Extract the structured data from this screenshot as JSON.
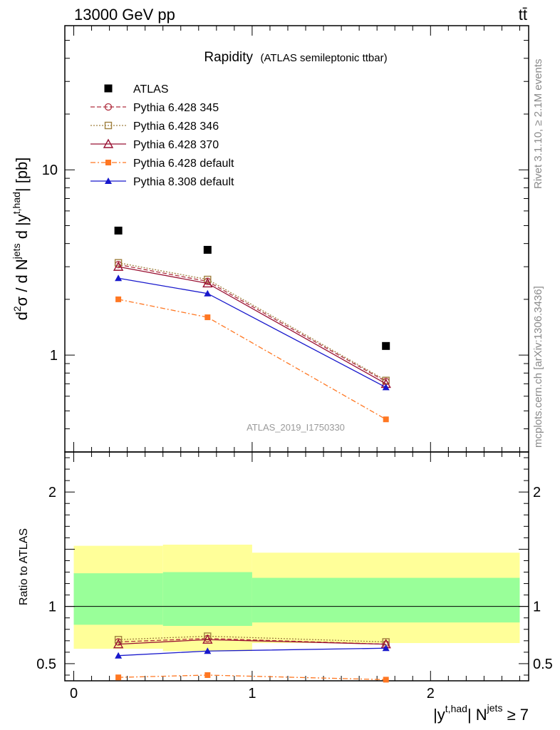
{
  "header": {
    "energy_label": "13000 GeV pp",
    "process_label": "tt̄"
  },
  "side_labels": {
    "rivet": "Rivet 3.1.10, ≥ 2.1M events",
    "mcplots": "mcplots.cern.ch [arXiv:1306.3436]"
  },
  "chart_data": [
    {
      "type": "line",
      "title": "Rapidity",
      "subtitle": "(ATLAS semileptonic ttbar)",
      "watermark": "ATLAS_2019_I1750330",
      "ylabel": {
        "pre": "d",
        "sup1": "2",
        "mid": "σ / d N",
        "sup2": "jets",
        "post": " d |y",
        "sup3": "t,had",
        "end": "| [pb]"
      },
      "yscale": "log",
      "ylim": [
        0.3,
        60
      ],
      "xlim": [
        -0.05,
        2.55
      ],
      "ytick_labels": [
        {
          "v": 1,
          "label": "1"
        },
        {
          "v": 10,
          "label": "10"
        }
      ],
      "x": [
        0.25,
        0.75,
        1.75
      ],
      "series": [
        {
          "name": "ATLAS",
          "values": [
            4.7,
            3.7,
            1.12
          ],
          "color": "#000000",
          "marker": "square",
          "dash": "none"
        },
        {
          "name": "Pythia 6.428 345",
          "values": [
            3.08,
            2.5,
            0.72
          ],
          "color": "#b03040",
          "marker": "circle-open",
          "dash": "6,3"
        },
        {
          "name": "Pythia 6.428 346",
          "values": [
            3.15,
            2.56,
            0.73
          ],
          "color": "#a08040",
          "marker": "square-open",
          "dash": "2,2"
        },
        {
          "name": "Pythia 6.428 370",
          "values": [
            3.0,
            2.44,
            0.7
          ],
          "color": "#991133",
          "marker": "triangle-open",
          "dash": "none"
        },
        {
          "name": "Pythia 6.428 default",
          "values": [
            2.0,
            1.6,
            0.45
          ],
          "color": "#ff7722",
          "marker": "square-filled",
          "dash": "7,3,2,3"
        },
        {
          "name": "Pythia 8.308 default",
          "values": [
            2.6,
            2.15,
            0.67
          ],
          "color": "#1818cc",
          "marker": "triangle-filled",
          "dash": "none"
        }
      ],
      "legend_position": "top-left"
    },
    {
      "type": "line",
      "ylabel": "Ratio to ATLAS",
      "xlabel": {
        "pre": "|y",
        "sup1": "t,had",
        "mid": "| N",
        "sup2": "jets",
        "post": " ≥ 7"
      },
      "ylim": [
        0.35,
        2.35
      ],
      "xlim": [
        -0.05,
        2.55
      ],
      "ytick_labels": [
        {
          "v": 0.5,
          "label": "0.5"
        },
        {
          "v": 1,
          "label": "1"
        },
        {
          "v": 2,
          "label": "2"
        }
      ],
      "xtick_labels": [
        {
          "v": 0,
          "label": "0"
        },
        {
          "v": 1,
          "label": "1"
        },
        {
          "v": 2,
          "label": "2"
        }
      ],
      "bands": [
        {
          "x0": 0.0,
          "x1": 0.5,
          "yellow": [
            0.63,
            1.53
          ],
          "green": [
            0.84,
            1.29
          ]
        },
        {
          "x0": 0.5,
          "x1": 1.0,
          "yellow": [
            0.61,
            1.54
          ],
          "green": [
            0.83,
            1.3
          ]
        },
        {
          "x0": 1.0,
          "x1": 2.5,
          "yellow": [
            0.68,
            1.47
          ],
          "green": [
            0.86,
            1.25
          ]
        }
      ],
      "band_colors": {
        "yellow": "#ffff99",
        "green": "#99ff99"
      },
      "x": [
        0.25,
        0.75,
        1.75
      ],
      "series": [
        {
          "name": "Pythia 6.428 345",
          "values": [
            0.69,
            0.72,
            0.67
          ],
          "color": "#b03040",
          "marker": "circle-open",
          "dash": "6,3"
        },
        {
          "name": "Pythia 6.428 346",
          "values": [
            0.71,
            0.74,
            0.69
          ],
          "color": "#a08040",
          "marker": "square-open",
          "dash": "2,2"
        },
        {
          "name": "Pythia 6.428 370",
          "values": [
            0.67,
            0.71,
            0.67
          ],
          "color": "#991133",
          "marker": "triangle-open",
          "dash": "none"
        },
        {
          "name": "Pythia 6.428 default",
          "values": [
            0.38,
            0.4,
            0.36
          ],
          "color": "#ff7722",
          "marker": "square-filled",
          "dash": "7,3,2,3"
        },
        {
          "name": "Pythia 8.308 default",
          "values": [
            0.57,
            0.61,
            0.635
          ],
          "color": "#1818cc",
          "marker": "triangle-filled",
          "dash": "none"
        }
      ]
    }
  ]
}
